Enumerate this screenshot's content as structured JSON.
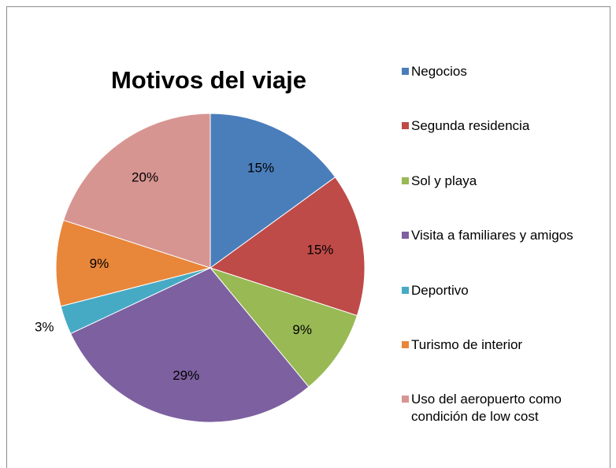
{
  "chart_data": {
    "type": "pie",
    "title": "Motivos del viaje",
    "categories": [
      "Negocios",
      "Segunda residencia",
      "Sol y playa",
      "Visita a familiares y amigos",
      "Deportivo",
      "Turismo de interior",
      "Uso del aeropuerto como condición de low cost"
    ],
    "values": [
      15,
      15,
      9,
      29,
      3,
      9,
      20
    ],
    "value_labels": [
      "15%",
      "15%",
      "9%",
      "29%",
      "3%",
      "9%",
      "20%"
    ],
    "colors": [
      "#4a7ebb",
      "#be4b48",
      "#98b954",
      "#7d60a0",
      "#46aac5",
      "#e8863a",
      "#d79592"
    ],
    "legend": "right"
  }
}
